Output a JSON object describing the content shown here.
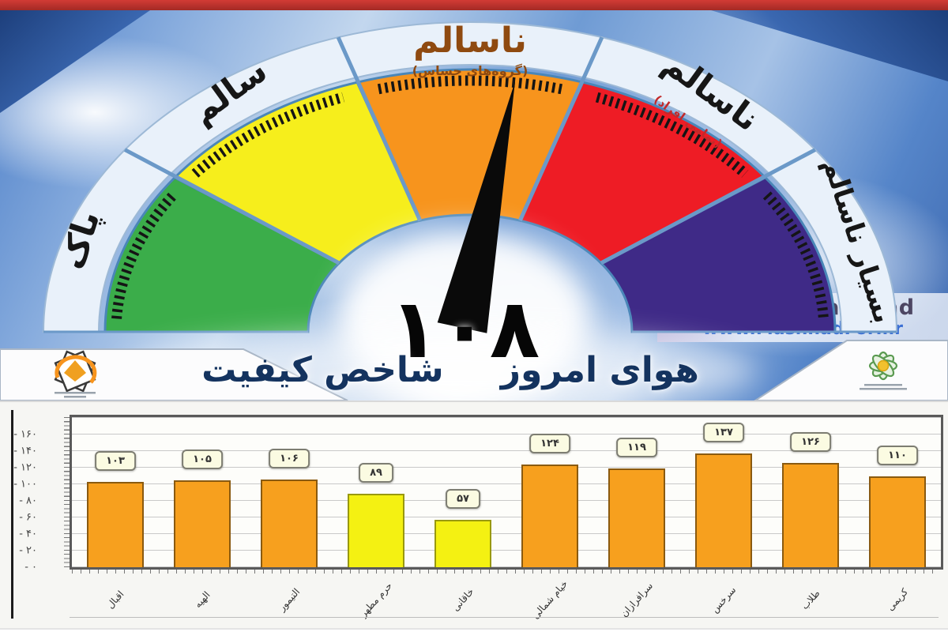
{
  "colors": {
    "clean_green": "#3BAD4A",
    "healthy_yellow": "#F6EE1C",
    "sensitive_orange": "#F7941D",
    "unhealthy_red": "#EE1C25",
    "very_unhealthy_purple": "#3F2A87",
    "ring": "#E9F1FA",
    "divider_blue": "#6B99C8",
    "title_navy": "#14335F",
    "orange_fill": "#F7A01E",
    "orange_border": "#8A5A10",
    "yellow_fill": "#F4F112",
    "yellow_border": "#99990F"
  },
  "gauge": {
    "value_fa": "۱۰۸",
    "title": {
      "part1": "شاخص کیفیت",
      "part2": "هوای امروز"
    },
    "segments": [
      {
        "label": "پاک",
        "sublabel": "",
        "color": "#3BAD4A"
      },
      {
        "label": "سالم",
        "sublabel": "",
        "color": "#F6EE1C"
      },
      {
        "label": "ناسالم",
        "sublabel": "(گروه‌های حساس)",
        "color": "#F7941D"
      },
      {
        "label": "ناسالم",
        "sublabel": "(تمامی افراد)",
        "color": "#EE1C25"
      },
      {
        "label": "بسیار ناسالم",
        "sublabel": "",
        "color": "#3F2A87"
      }
    ]
  },
  "watermark": {
    "line1": "@AKhbarMashhad",
    "line2": "www.MashhadFori.ir"
  },
  "chart_data": {
    "type": "bar",
    "title": "",
    "xlabel": "",
    "ylabel": "",
    "ylim": [
      0,
      160
    ],
    "grid": true,
    "legend": false,
    "categories": [
      "اقبال",
      "الهیه",
      "التیمور",
      "حرم مطهر",
      "خاقانی",
      "خیام شمالی",
      "سرافرازان",
      "سرخس",
      "طلاب",
      "کریمی"
    ],
    "values": [
      103,
      105,
      106,
      89,
      57,
      124,
      119,
      137,
      126,
      110
    ],
    "value_labels_fa": [
      "۱۰۳",
      "۱۰۵",
      "۱۰۶",
      "۸۹",
      "۵۷",
      "۱۲۴",
      "۱۱۹",
      "۱۳۷",
      "۱۲۶",
      "۱۱۰"
    ],
    "bar_types": [
      "orange",
      "orange",
      "orange",
      "yellow",
      "yellow",
      "orange",
      "orange",
      "orange",
      "orange",
      "orange"
    ],
    "yticks_fa": [
      "۰",
      "۲۰",
      "۴۰",
      "۶۰",
      "۸۰",
      "۱۰۰",
      "۱۲۰",
      "۱۴۰",
      "۱۶۰"
    ]
  }
}
